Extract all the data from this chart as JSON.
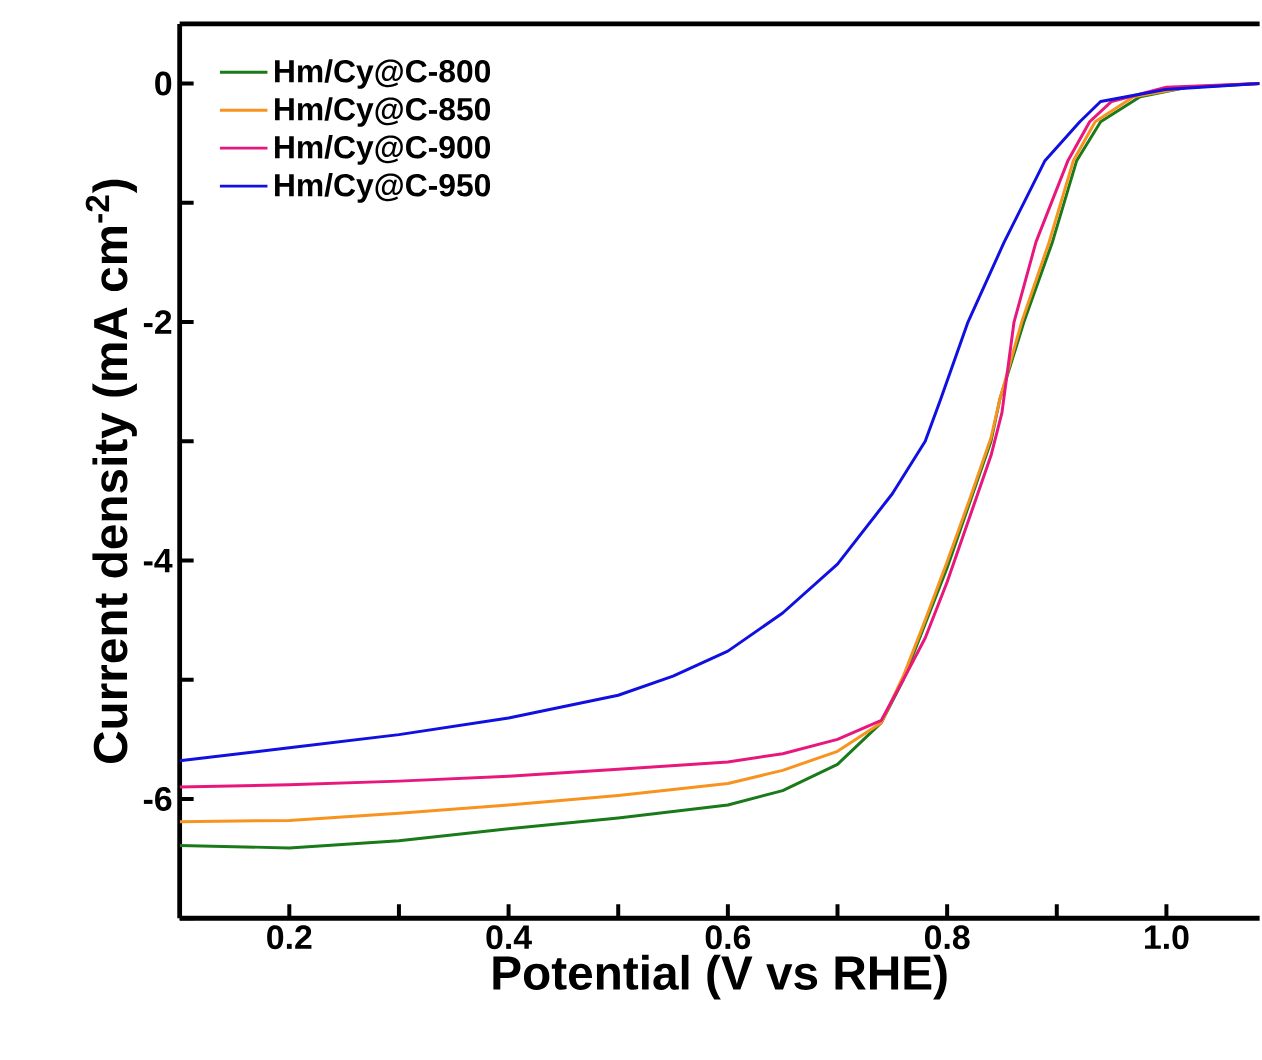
{
  "chart_data": {
    "type": "line",
    "xlabel": "Potential (V vs RHE)",
    "ylabel": "Current density (mA cm$^{-2}$)",
    "xlim": [
      0.1,
      1.085
    ],
    "ylim": [
      -7,
      0.5
    ],
    "xticks": [
      0.2,
      {
        "value": 0.3,
        "label": null
      },
      0.4,
      {
        "value": 0.5,
        "label": null
      },
      0.6,
      {
        "value": 0.7,
        "label": null
      },
      0.8,
      {
        "value": 0.9,
        "label": null
      },
      {
        "value": 1.0,
        "label": "1.0"
      }
    ],
    "yticks": [
      {
        "value": -7,
        "label": null
      },
      -6,
      {
        "value": -5,
        "label": null
      },
      -4,
      {
        "value": -3,
        "label": null
      },
      -2,
      {
        "value": -1,
        "label": null
      },
      0
    ],
    "legend": "top left",
    "grid": false,
    "marker": "none",
    "line_style": "solid",
    "series": [
      {
        "name": "Hm/Cy@C-800",
        "color": "#1a7a1a",
        "x": [
          0.1,
          0.2,
          0.3,
          0.4,
          0.5,
          0.6,
          0.65,
          0.7,
          0.74,
          0.76,
          0.78,
          0.8,
          0.82,
          0.84,
          0.848,
          0.87,
          0.896,
          0.918,
          0.94,
          0.976,
          1.02,
          1.085
        ],
        "values": [
          -6.39,
          -6.41,
          -6.35,
          -6.25,
          -6.16,
          -6.05,
          -5.93,
          -5.71,
          -5.36,
          -5.0,
          -4.53,
          -4.06,
          -3.53,
          -3.0,
          -2.65,
          -2.0,
          -1.33,
          -0.65,
          -0.32,
          -0.11,
          -0.03,
          0.0
        ]
      },
      {
        "name": "Hm/Cy@C-850",
        "color": "#f7931e",
        "x": [
          0.1,
          0.2,
          0.3,
          0.4,
          0.5,
          0.6,
          0.65,
          0.7,
          0.74,
          0.76,
          0.78,
          0.8,
          0.82,
          0.84,
          0.848,
          0.868,
          0.893,
          0.915,
          0.935,
          0.97,
          1.02,
          1.085
        ],
        "values": [
          -6.19,
          -6.18,
          -6.12,
          -6.05,
          -5.97,
          -5.87,
          -5.76,
          -5.6,
          -5.36,
          -4.97,
          -4.5,
          -4.01,
          -3.5,
          -2.97,
          -2.65,
          -2.0,
          -1.33,
          -0.65,
          -0.32,
          -0.11,
          -0.03,
          0.0
        ]
      },
      {
        "name": "Hm/Cy@C-900",
        "color": "#e8177d",
        "x": [
          0.1,
          0.2,
          0.3,
          0.4,
          0.5,
          0.6,
          0.65,
          0.7,
          0.74,
          0.76,
          0.78,
          0.8,
          0.82,
          0.84,
          0.85,
          0.861,
          0.881,
          0.91,
          0.93,
          0.95,
          1.0,
          1.085
        ],
        "values": [
          -5.9,
          -5.88,
          -5.85,
          -5.81,
          -5.75,
          -5.69,
          -5.62,
          -5.5,
          -5.34,
          -5.0,
          -4.65,
          -4.18,
          -3.65,
          -3.12,
          -2.76,
          -2.0,
          -1.33,
          -0.65,
          -0.32,
          -0.15,
          -0.03,
          0.0
        ]
      },
      {
        "name": "Hm/Cy@C-950",
        "color": "#1010e0",
        "x": [
          0.1,
          0.2,
          0.3,
          0.4,
          0.5,
          0.55,
          0.6,
          0.65,
          0.7,
          0.75,
          0.78,
          0.794,
          0.819,
          0.852,
          0.889,
          0.921,
          0.94,
          0.999,
          1.085
        ],
        "values": [
          -5.68,
          -5.57,
          -5.46,
          -5.32,
          -5.13,
          -4.97,
          -4.76,
          -4.44,
          -4.03,
          -3.44,
          -3.0,
          -2.65,
          -2.0,
          -1.33,
          -0.65,
          -0.32,
          -0.15,
          -0.05,
          0.0
        ]
      }
    ]
  }
}
